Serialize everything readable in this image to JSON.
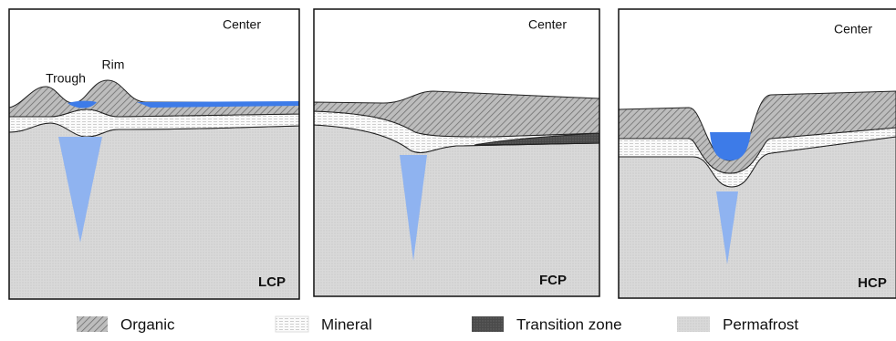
{
  "panels": [
    {
      "center": "Center",
      "annotations": [
        "Trough",
        "Rim"
      ],
      "name": "LCP"
    },
    {
      "center": "Center",
      "name": "FCP"
    },
    {
      "center": "Center",
      "name": "HCP"
    }
  ],
  "legend": [
    {
      "label": "Organic"
    },
    {
      "label": "Mineral"
    },
    {
      "label": "Transition zone"
    },
    {
      "label": "Permafrost"
    }
  ]
}
